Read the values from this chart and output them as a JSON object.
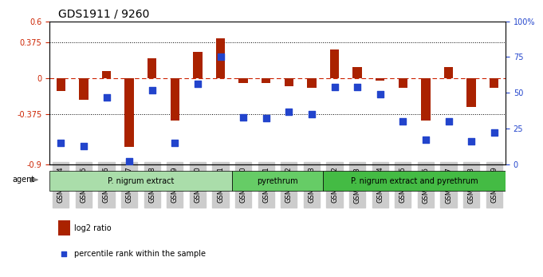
{
  "title": "GDS1911 / 9260",
  "samples": [
    "GSM66824",
    "GSM66825",
    "GSM66826",
    "GSM66827",
    "GSM66828",
    "GSM66829",
    "GSM66830",
    "GSM66831",
    "GSM66840",
    "GSM66841",
    "GSM66842",
    "GSM66843",
    "GSM66832",
    "GSM66833",
    "GSM66834",
    "GSM66835",
    "GSM66836",
    "GSM66837",
    "GSM66838",
    "GSM66839"
  ],
  "log2_ratio": [
    -0.13,
    -0.22,
    0.08,
    -0.72,
    0.21,
    -0.44,
    0.28,
    0.42,
    -0.05,
    -0.05,
    -0.08,
    -0.1,
    0.3,
    0.12,
    -0.02,
    -0.1,
    -0.44,
    0.12,
    -0.3,
    -0.1
  ],
  "percentile": [
    15,
    13,
    47,
    2,
    52,
    15,
    56,
    75,
    33,
    32,
    37,
    35,
    54,
    54,
    49,
    30,
    17,
    30,
    16,
    22
  ],
  "groups": [
    {
      "label": "P. nigrum extract",
      "start": 0,
      "end": 7,
      "color": "#aaddaa"
    },
    {
      "label": "pyrethrum",
      "start": 8,
      "end": 11,
      "color": "#66cc66"
    },
    {
      "label": "P. nigrum extract and pyrethrum",
      "start": 12,
      "end": 19,
      "color": "#44bb44"
    }
  ],
  "ylim_left": [
    -0.9,
    0.6
  ],
  "ylim_right": [
    0,
    100
  ],
  "yticks_left": [
    -0.9,
    -0.375,
    0,
    0.375,
    0.6
  ],
  "ytick_labels_left": [
    "-0.9",
    "-0.375",
    "0",
    "0.375",
    "0.6"
  ],
  "yticks_right": [
    0,
    25,
    50,
    75,
    100
  ],
  "ytick_labels_right": [
    "0",
    "25",
    "50",
    "75",
    "100%"
  ],
  "hline_y": 0,
  "dotted_lines": [
    -0.375,
    0.375
  ],
  "bar_color": "#aa2200",
  "dot_color": "#2244cc",
  "bar_width": 0.4,
  "dot_size": 30,
  "agent_label": "agent",
  "legend_items": [
    {
      "color": "#aa2200",
      "label": "log2 ratio"
    },
    {
      "color": "#2244cc",
      "label": "percentile rank within the sample"
    }
  ]
}
